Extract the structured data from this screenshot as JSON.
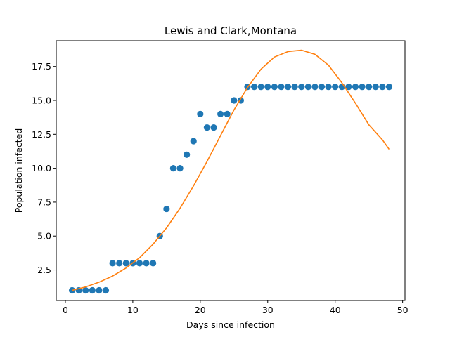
{
  "chart_data": {
    "type": "scatter",
    "title": "Lewis and Clark,Montana",
    "xlabel": "Days since infection",
    "ylabel": "Population infected",
    "xlim": [
      -1.35,
      50.35
    ],
    "ylim": [
      0.25,
      19.4
    ],
    "xticks": [
      0,
      10,
      20,
      30,
      40,
      50
    ],
    "yticks": [
      2.5,
      5.0,
      7.5,
      10.0,
      12.5,
      15.0,
      17.5
    ],
    "grid": false,
    "legend": "none",
    "series": [
      {
        "kind": "scatter",
        "color": "#1f77b4",
        "x": [
          1,
          2,
          3,
          4,
          5,
          6,
          7,
          8,
          9,
          10,
          11,
          12,
          13,
          14,
          15,
          16,
          17,
          18,
          19,
          20,
          21,
          22,
          23,
          24,
          25,
          26,
          27,
          28,
          29,
          30,
          31,
          32,
          33,
          34,
          35,
          36,
          37,
          38,
          39,
          40,
          41,
          42,
          43,
          44,
          45,
          46,
          47,
          48
        ],
        "y": [
          1,
          1,
          1,
          1,
          1,
          1,
          3,
          3,
          3,
          3,
          3,
          3,
          3,
          5,
          7,
          10,
          10,
          11,
          12,
          14,
          13,
          13,
          14,
          14,
          15,
          15,
          16,
          16,
          16,
          16,
          16,
          16,
          16,
          16,
          16,
          16,
          16,
          16,
          16,
          16,
          16,
          16,
          16,
          16,
          16,
          16,
          16,
          16
        ]
      },
      {
        "kind": "line",
        "color": "#ff7f0e",
        "x": [
          1,
          3,
          5,
          7,
          9,
          11,
          13,
          15,
          17,
          19,
          21,
          23,
          25,
          27,
          29,
          31,
          33,
          35,
          37,
          39,
          41,
          43,
          45,
          47,
          48
        ],
        "y": [
          1.0,
          1.25,
          1.6,
          2.05,
          2.65,
          3.4,
          4.4,
          5.6,
          7.05,
          8.7,
          10.5,
          12.4,
          14.3,
          15.95,
          17.3,
          18.2,
          18.6,
          18.7,
          18.4,
          17.6,
          16.3,
          14.8,
          13.2,
          12.1,
          11.4
        ]
      }
    ]
  }
}
